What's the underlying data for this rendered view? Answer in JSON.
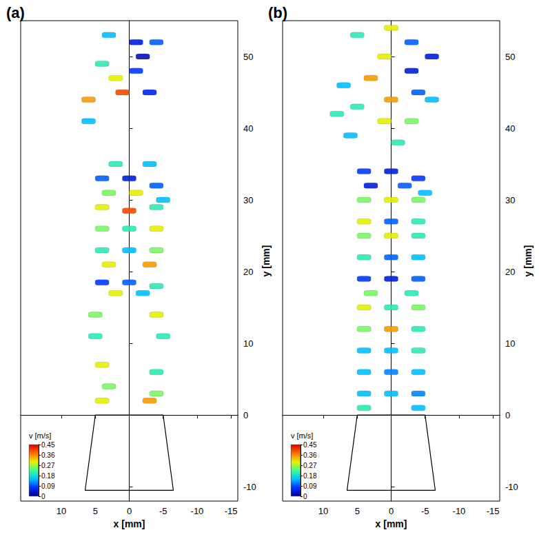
{
  "chart_data": [
    {
      "type": "scatter",
      "title": "(a)",
      "xlabel": "x [mm]",
      "ylabel": "y [mm]",
      "xlim": [
        16,
        -16
      ],
      "xticks": [
        10,
        5,
        0,
        -5,
        -10,
        -15
      ],
      "ylim": [
        -12,
        55
      ],
      "yticks": [
        -10,
        0,
        10,
        20,
        30,
        40,
        50
      ],
      "points": [
        [
          -1,
          52,
          0.05
        ],
        [
          -2,
          50,
          0.03
        ],
        [
          -1,
          48,
          0.08
        ],
        [
          2,
          47,
          0.3
        ],
        [
          -3,
          45,
          0.06
        ],
        [
          1,
          45,
          0.4
        ],
        [
          4,
          49,
          0.2
        ],
        [
          6,
          44,
          0.35
        ],
        [
          6,
          41,
          0.15
        ],
        [
          3,
          53,
          0.15
        ],
        [
          -4,
          52,
          0.1
        ],
        [
          4,
          33,
          0.1
        ],
        [
          0,
          33,
          0.05
        ],
        [
          -4,
          32,
          0.1
        ],
        [
          3,
          31,
          0.25
        ],
        [
          -1,
          31,
          0.3
        ],
        [
          -5,
          30,
          0.15
        ],
        [
          2,
          35,
          0.2
        ],
        [
          -3,
          35,
          0.15
        ],
        [
          4,
          29,
          0.3
        ],
        [
          0,
          28.5,
          0.4
        ],
        [
          -4,
          29,
          0.2
        ],
        [
          4,
          26,
          0.25
        ],
        [
          0,
          26,
          0.2
        ],
        [
          -4,
          26,
          0.3
        ],
        [
          4,
          23,
          0.2
        ],
        [
          0,
          23,
          0.15
        ],
        [
          -4,
          23,
          0.25
        ],
        [
          3,
          21,
          0.3
        ],
        [
          -3,
          21,
          0.35
        ],
        [
          4,
          18.5,
          0.08
        ],
        [
          0,
          18.5,
          0.1
        ],
        [
          -4,
          18,
          0.2
        ],
        [
          2,
          17,
          0.3
        ],
        [
          -2,
          17,
          0.15
        ],
        [
          5,
          14,
          0.25
        ],
        [
          -4,
          14,
          0.3
        ],
        [
          5,
          11,
          0.2
        ],
        [
          -5,
          11,
          0.2
        ],
        [
          4,
          7,
          0.3
        ],
        [
          -4,
          6,
          0.2
        ],
        [
          3,
          4,
          0.25
        ],
        [
          -4,
          3,
          0.25
        ],
        [
          4,
          2,
          0.3
        ],
        [
          -3,
          2,
          0.35
        ]
      ],
      "nozzle": {
        "x": [
          5,
          6.5,
          -6.5,
          -5,
          5
        ],
        "y": [
          0,
          -10.5,
          -10.5,
          0,
          0
        ]
      },
      "colorbar": {
        "label": "v [m/s]",
        "range": [
          0,
          0.45
        ],
        "ticks": [
          0,
          0.09,
          0.18,
          0.27,
          0.36,
          0.45
        ]
      }
    },
    {
      "type": "scatter",
      "title": "(b)",
      "xlabel": "x [mm]",
      "ylabel": "y [mm]",
      "xlim": [
        16,
        -16
      ],
      "xticks": [
        10,
        5,
        0,
        -5,
        -10,
        -15
      ],
      "ylim": [
        -12,
        55
      ],
      "yticks": [
        -10,
        0,
        10,
        20,
        30,
        40,
        50
      ],
      "points": [
        [
          5,
          53,
          0.2
        ],
        [
          0,
          54,
          0.3
        ],
        [
          -3,
          52,
          0.1
        ],
        [
          -6,
          50,
          0.05
        ],
        [
          -3,
          48,
          0.05
        ],
        [
          1,
          50,
          0.3
        ],
        [
          3,
          47,
          0.35
        ],
        [
          7,
          46,
          0.15
        ],
        [
          0,
          44,
          0.35
        ],
        [
          -4,
          45,
          0.1
        ],
        [
          5,
          43,
          0.2
        ],
        [
          -6,
          44,
          0.15
        ],
        [
          8,
          42,
          0.2
        ],
        [
          1,
          41,
          0.3
        ],
        [
          -3,
          41,
          0.25
        ],
        [
          6,
          39,
          0.15
        ],
        [
          -1,
          38,
          0.2
        ],
        [
          4,
          34,
          0.08
        ],
        [
          0,
          34,
          0.05
        ],
        [
          -4,
          33,
          0.08
        ],
        [
          3,
          32,
          0.05
        ],
        [
          -2,
          32,
          0.1
        ],
        [
          -5,
          31,
          0.15
        ],
        [
          4,
          30,
          0.25
        ],
        [
          0,
          30,
          0.3
        ],
        [
          -4,
          30,
          0.25
        ],
        [
          4,
          27,
          0.3
        ],
        [
          0,
          27,
          0.1
        ],
        [
          -4,
          27,
          0.2
        ],
        [
          4,
          25,
          0.25
        ],
        [
          0,
          25,
          0.3
        ],
        [
          -4,
          25,
          0.2
        ],
        [
          4,
          22,
          0.2
        ],
        [
          0,
          22,
          0.1
        ],
        [
          -4,
          22,
          0.15
        ],
        [
          4,
          19,
          0.08
        ],
        [
          0,
          19,
          0.05
        ],
        [
          -4,
          19,
          0.1
        ],
        [
          3,
          17,
          0.25
        ],
        [
          -3,
          17,
          0.2
        ],
        [
          4,
          15,
          0.3
        ],
        [
          0,
          15,
          0.2
        ],
        [
          -4,
          15,
          0.25
        ],
        [
          4,
          12,
          0.25
        ],
        [
          0,
          12,
          0.35
        ],
        [
          -4,
          12,
          0.2
        ],
        [
          4,
          9,
          0.15
        ],
        [
          0,
          9,
          0.15
        ],
        [
          -4,
          9,
          0.2
        ],
        [
          4,
          6,
          0.15
        ],
        [
          0,
          6,
          0.12
        ],
        [
          -4,
          6,
          0.15
        ],
        [
          4,
          3,
          0.15
        ],
        [
          0,
          3,
          0.15
        ],
        [
          -4,
          3,
          0.12
        ],
        [
          4,
          1,
          0.2
        ],
        [
          -4,
          1,
          0.15
        ]
      ],
      "nozzle": {
        "x": [
          5,
          6.5,
          -6.5,
          -5,
          5
        ],
        "y": [
          0,
          -10.5,
          -10.5,
          0,
          0
        ]
      },
      "colorbar": {
        "label": "v [m/s]",
        "range": [
          0,
          0.45
        ],
        "ticks": [
          0,
          0.09,
          0.18,
          0.27,
          0.36,
          0.45
        ]
      }
    }
  ]
}
